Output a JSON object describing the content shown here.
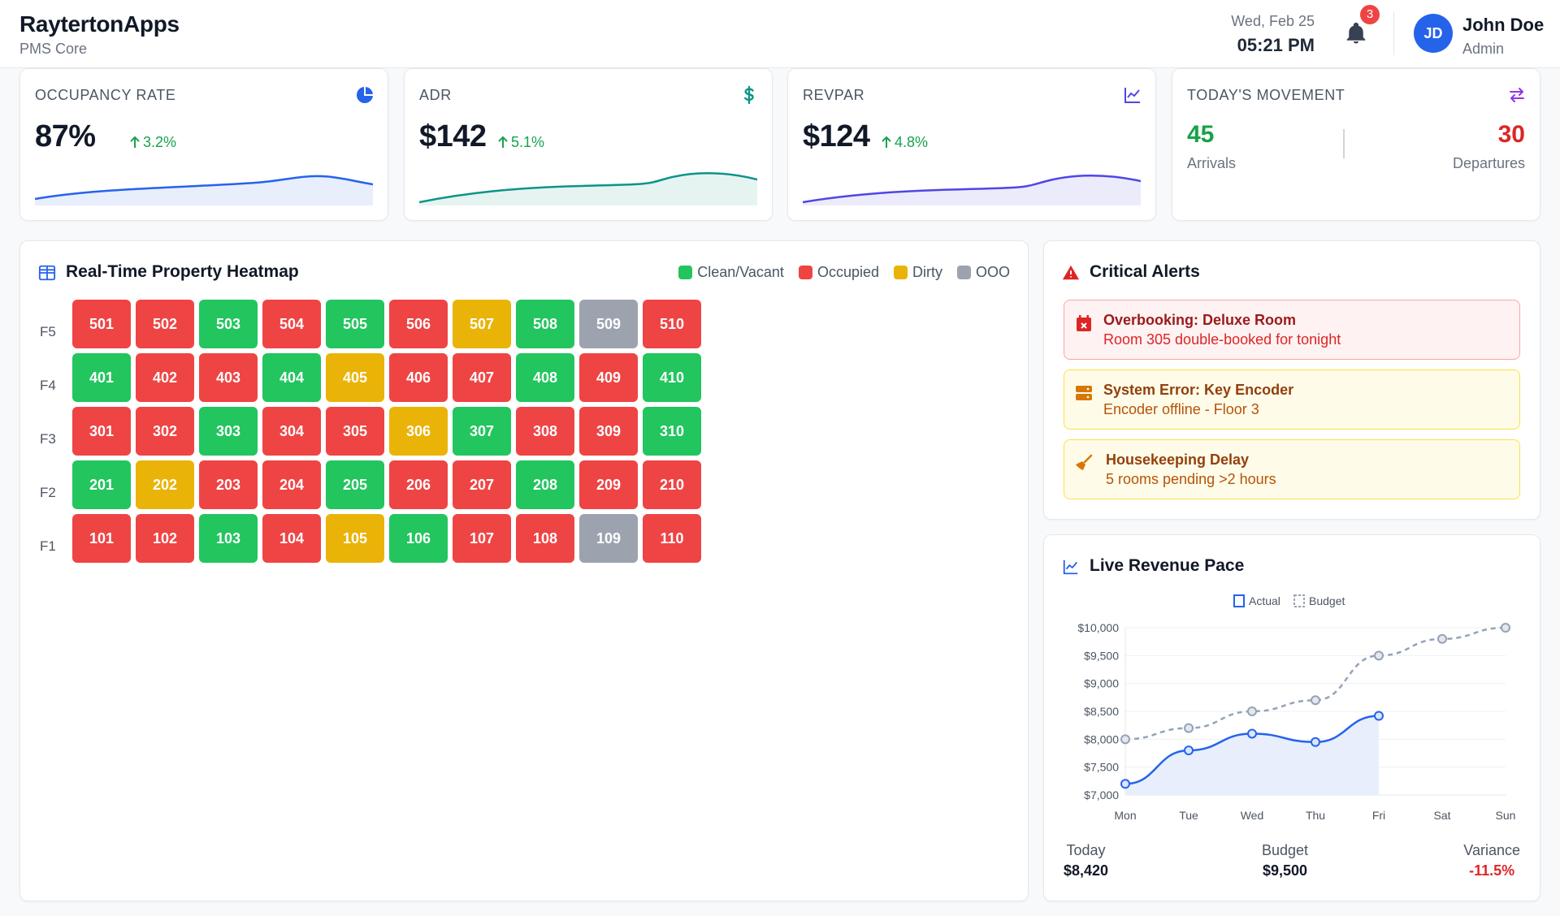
{
  "header": {
    "brand": "RaytertonApps",
    "subtitle": "PMS Core",
    "date": "Wed, Feb 25",
    "time": "05:21 PM",
    "notification_count": "3",
    "avatar_initials": "JD",
    "user_name": "John Doe",
    "user_role": "Admin"
  },
  "kpis": [
    {
      "title": "OCCUPANCY RATE",
      "value": "87%",
      "change": "3.2%",
      "icon": "pie-chart-icon",
      "color": "#2563eb"
    },
    {
      "title": "ADR",
      "value": "$142",
      "change": "5.1%",
      "icon": "dollar-icon",
      "color": "#0d9488"
    },
    {
      "title": "REVPAR",
      "value": "$124",
      "change": "4.8%",
      "icon": "line-chart-icon",
      "color": "#4f46e5"
    }
  ],
  "movement": {
    "title": "TODAY'S MOVEMENT",
    "arrivals": "45",
    "arrivals_label": "Arrivals",
    "departures": "30",
    "departures_label": "Departures"
  },
  "heatmap": {
    "title": "Real-Time Property Heatmap",
    "legend": [
      {
        "label": "Clean/Vacant",
        "color": "#22c55e"
      },
      {
        "label": "Occupied",
        "color": "#ef4444"
      },
      {
        "label": "Dirty",
        "color": "#eab308"
      },
      {
        "label": "OOO",
        "color": "#9ca3af"
      }
    ],
    "status_colors": {
      "C": "#22c55e",
      "O": "#ef4444",
      "D": "#eab308",
      "X": "#9ca3af"
    },
    "floors": [
      {
        "label": "F5",
        "rooms": [
          [
            "501",
            "O"
          ],
          [
            "502",
            "O"
          ],
          [
            "503",
            "C"
          ],
          [
            "504",
            "O"
          ],
          [
            "505",
            "C"
          ],
          [
            "506",
            "O"
          ],
          [
            "507",
            "D"
          ],
          [
            "508",
            "C"
          ],
          [
            "509",
            "X"
          ],
          [
            "510",
            "O"
          ]
        ]
      },
      {
        "label": "F4",
        "rooms": [
          [
            "401",
            "C"
          ],
          [
            "402",
            "O"
          ],
          [
            "403",
            "O"
          ],
          [
            "404",
            "C"
          ],
          [
            "405",
            "D"
          ],
          [
            "406",
            "O"
          ],
          [
            "407",
            "O"
          ],
          [
            "408",
            "C"
          ],
          [
            "409",
            "O"
          ],
          [
            "410",
            "C"
          ]
        ]
      },
      {
        "label": "F3",
        "rooms": [
          [
            "301",
            "O"
          ],
          [
            "302",
            "O"
          ],
          [
            "303",
            "C"
          ],
          [
            "304",
            "O"
          ],
          [
            "305",
            "O"
          ],
          [
            "306",
            "D"
          ],
          [
            "307",
            "C"
          ],
          [
            "308",
            "O"
          ],
          [
            "309",
            "O"
          ],
          [
            "310",
            "C"
          ]
        ]
      },
      {
        "label": "F2",
        "rooms": [
          [
            "201",
            "C"
          ],
          [
            "202",
            "D"
          ],
          [
            "203",
            "O"
          ],
          [
            "204",
            "O"
          ],
          [
            "205",
            "C"
          ],
          [
            "206",
            "O"
          ],
          [
            "207",
            "O"
          ],
          [
            "208",
            "C"
          ],
          [
            "209",
            "O"
          ],
          [
            "210",
            "O"
          ]
        ]
      },
      {
        "label": "F1",
        "rooms": [
          [
            "101",
            "O"
          ],
          [
            "102",
            "O"
          ],
          [
            "103",
            "C"
          ],
          [
            "104",
            "O"
          ],
          [
            "105",
            "D"
          ],
          [
            "106",
            "C"
          ],
          [
            "107",
            "O"
          ],
          [
            "108",
            "O"
          ],
          [
            "109",
            "X"
          ],
          [
            "110",
            "O"
          ]
        ]
      }
    ]
  },
  "alerts": {
    "title": "Critical Alerts",
    "items": [
      {
        "title": "Overbooking: Deluxe Room",
        "detail": "Room 305 double-booked for tonight"
      },
      {
        "title": "System Error: Key Encoder",
        "detail": "Encoder offline - Floor 3"
      },
      {
        "title": "Housekeeping Delay",
        "detail": "5 rooms pending >2 hours"
      }
    ]
  },
  "revenue": {
    "title": "Live Revenue Pace",
    "today_label": "Today",
    "today_value": "$8,420",
    "budget_label": "Budget",
    "budget_value": "$9,500",
    "variance_label": "Variance",
    "variance_value": "-11.5%"
  },
  "chart_data": {
    "type": "line",
    "title": "Live Revenue Pace",
    "categories": [
      "Mon",
      "Tue",
      "Wed",
      "Thu",
      "Fri",
      "Sat",
      "Sun"
    ],
    "series": [
      {
        "name": "Actual",
        "values": [
          7200,
          7800,
          8100,
          7950,
          8420,
          null,
          null
        ]
      },
      {
        "name": "Budget",
        "values": [
          8000,
          8200,
          8500,
          8700,
          9500,
          9800,
          10000
        ]
      }
    ],
    "yticks": [
      "$10,000",
      "$9,500",
      "$9,000",
      "$8,500",
      "$8,000",
      "$7,500",
      "$7,000"
    ],
    "ylim": [
      7000,
      10000
    ],
    "legend_position": "top"
  }
}
